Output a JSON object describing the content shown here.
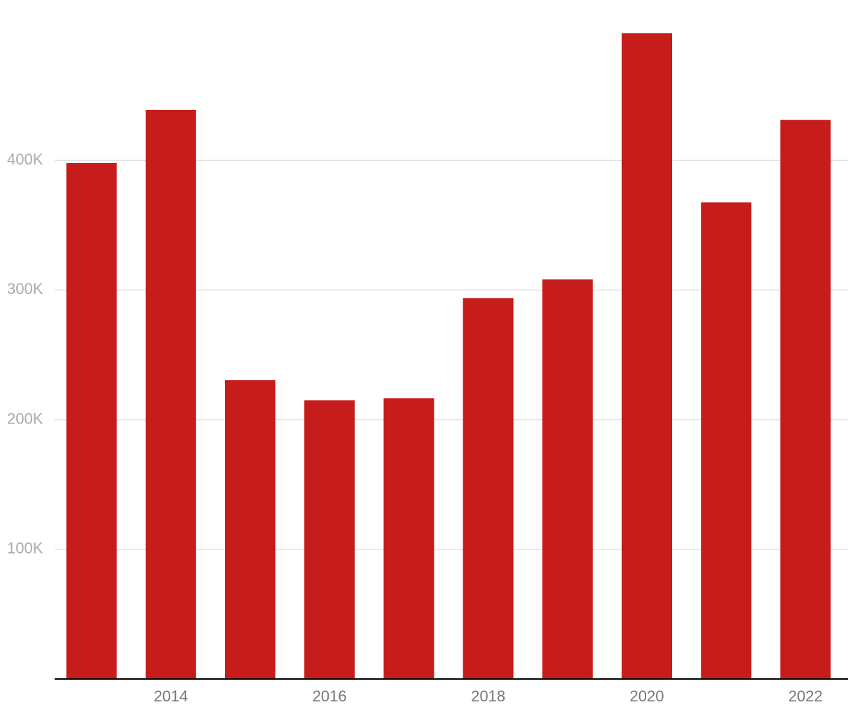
{
  "chart_data": {
    "type": "bar",
    "categories": [
      null,
      "2014",
      null,
      "2016",
      null,
      "2018",
      null,
      "2020",
      null,
      "2022"
    ],
    "values": [
      398000,
      439000,
      230500,
      215000,
      216500,
      293700,
      308200,
      498200,
      367600,
      431300
    ],
    "color": "#c71c1c",
    "ylim": [
      0,
      500000
    ],
    "yticks": [
      {
        "value": 100000,
        "label": "100K"
      },
      {
        "value": 200000,
        "label": "200K"
      },
      {
        "value": 300000,
        "label": "300K"
      },
      {
        "value": 400000,
        "label": "400K"
      }
    ],
    "grid": true
  }
}
